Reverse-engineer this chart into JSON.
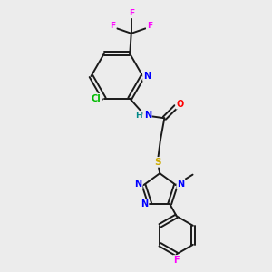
{
  "bg_color": "#ececec",
  "bond_color": "#1a1a1a",
  "atom_colors": {
    "N": "#0000ff",
    "O": "#ff0000",
    "S": "#ccaa00",
    "Cl": "#00bb00",
    "F": "#ff00ff",
    "H": "#008888"
  },
  "figsize": [
    3.0,
    3.0
  ],
  "dpi": 100
}
